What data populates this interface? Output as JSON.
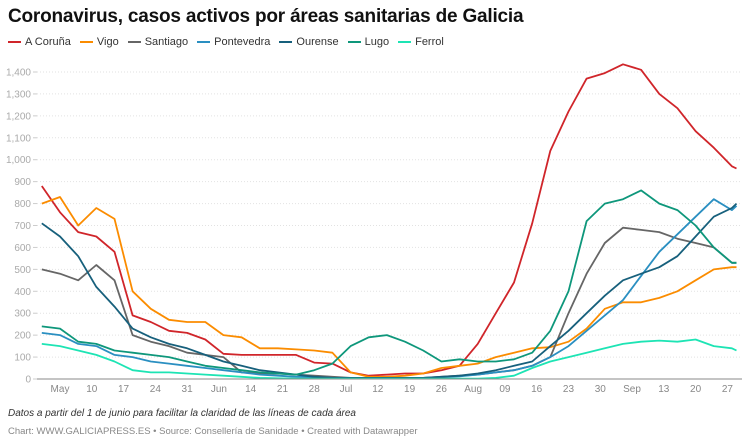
{
  "title": "Coronavirus, casos activos por áreas sanitarias de Galicia",
  "note": "Datos a partir del 1 de junio para facilitar la claridad de las líneas de cada área",
  "credits": "Chart: WWW.GALICIAPRESS.ES • Source: Consellería de Sanidade • Created with Datawrapper",
  "chart_data": {
    "type": "line",
    "title": "Coronavirus, casos activos por áreas sanitarias de Galicia",
    "xlabel": "",
    "ylabel": "",
    "ylim": [
      0,
      1400
    ],
    "grid": true,
    "legend": "top-left",
    "y_ticks": [
      0,
      100,
      200,
      300,
      400,
      500,
      600,
      700,
      800,
      900,
      1000,
      1100,
      1200,
      1300,
      1400
    ],
    "y_tick_labels": [
      "0",
      "100",
      "200",
      "300",
      "400",
      "500",
      "600",
      "700",
      "800",
      "900",
      "1,000",
      "1,100",
      "1,200",
      "1,300",
      "1,400"
    ],
    "x_ticks": [
      "2020-05-03",
      "2020-05-10",
      "2020-05-17",
      "2020-05-24",
      "2020-05-31",
      "2020-06-07",
      "2020-06-14",
      "2020-06-21",
      "2020-06-28",
      "2020-07-05",
      "2020-07-12",
      "2020-07-19",
      "2020-07-26",
      "2020-08-02",
      "2020-08-09",
      "2020-08-16",
      "2020-08-23",
      "2020-08-30",
      "2020-09-06",
      "2020-09-13",
      "2020-09-20",
      "2020-09-27"
    ],
    "x_tick_labels": [
      "May",
      "10",
      "17",
      "24",
      "31",
      "Jun",
      "14",
      "21",
      "28",
      "Jul",
      "12",
      "19",
      "26",
      "Aug",
      "09",
      "16",
      "23",
      "30",
      "Sep",
      "13",
      "20",
      "27"
    ],
    "x": [
      "2020-04-29",
      "2020-05-03",
      "2020-05-07",
      "2020-05-11",
      "2020-05-15",
      "2020-05-19",
      "2020-05-23",
      "2020-05-27",
      "2020-05-31",
      "2020-06-04",
      "2020-06-08",
      "2020-06-12",
      "2020-06-16",
      "2020-06-20",
      "2020-06-24",
      "2020-06-28",
      "2020-07-02",
      "2020-07-06",
      "2020-07-10",
      "2020-07-14",
      "2020-07-18",
      "2020-07-22",
      "2020-07-26",
      "2020-07-30",
      "2020-08-03",
      "2020-08-07",
      "2020-08-11",
      "2020-08-15",
      "2020-08-19",
      "2020-08-23",
      "2020-08-27",
      "2020-08-31",
      "2020-09-04",
      "2020-09-08",
      "2020-09-12",
      "2020-09-16",
      "2020-09-20",
      "2020-09-24",
      "2020-09-28",
      "2020-09-29"
    ],
    "series": [
      {
        "name": "A Coruña",
        "color": "#d0252a",
        "values": [
          880,
          760,
          670,
          650,
          580,
          290,
          260,
          220,
          210,
          180,
          115,
          110,
          110,
          110,
          110,
          75,
          70,
          30,
          15,
          20,
          25,
          25,
          40,
          60,
          160,
          300,
          440,
          710,
          1040,
          1220,
          1370,
          1395,
          1435,
          1410,
          1300,
          1235,
          1130,
          1055,
          970,
          960
        ]
      },
      {
        "name": "Vigo",
        "color": "#fb8c00",
        "values": [
          800,
          830,
          700,
          780,
          730,
          400,
          320,
          270,
          260,
          260,
          200,
          190,
          140,
          140,
          135,
          130,
          120,
          30,
          10,
          10,
          15,
          25,
          50,
          60,
          70,
          100,
          120,
          140,
          145,
          170,
          230,
          320,
          350,
          350,
          370,
          400,
          450,
          500,
          510,
          510
        ]
      },
      {
        "name": "Santiago",
        "color": "#666666",
        "values": [
          500,
          480,
          450,
          520,
          450,
          200,
          170,
          150,
          120,
          110,
          100,
          30,
          25,
          25,
          20,
          15,
          10,
          5,
          5,
          5,
          5,
          5,
          10,
          15,
          20,
          30,
          40,
          60,
          100,
          300,
          480,
          620,
          690,
          680,
          670,
          640,
          620,
          600,
          530,
          530
        ]
      },
      {
        "name": "Pontevedra",
        "color": "#2a8fc1",
        "values": [
          210,
          200,
          160,
          150,
          110,
          100,
          80,
          70,
          60,
          50,
          40,
          30,
          20,
          15,
          10,
          8,
          5,
          5,
          5,
          5,
          5,
          5,
          8,
          12,
          20,
          30,
          40,
          60,
          100,
          150,
          220,
          290,
          360,
          470,
          580,
          660,
          740,
          820,
          770,
          790
        ]
      },
      {
        "name": "Ourense",
        "color": "#17607c",
        "values": [
          710,
          650,
          560,
          420,
          330,
          230,
          190,
          160,
          140,
          110,
          80,
          60,
          40,
          30,
          20,
          10,
          5,
          5,
          5,
          5,
          5,
          5,
          10,
          15,
          25,
          40,
          60,
          80,
          150,
          220,
          300,
          380,
          450,
          480,
          510,
          560,
          650,
          740,
          780,
          800
        ]
      },
      {
        "name": "Lugo",
        "color": "#0e977b",
        "values": [
          240,
          230,
          170,
          160,
          130,
          120,
          110,
          100,
          80,
          60,
          50,
          40,
          30,
          25,
          20,
          40,
          70,
          150,
          190,
          200,
          170,
          130,
          80,
          90,
          80,
          80,
          90,
          120,
          220,
          400,
          720,
          800,
          820,
          860,
          800,
          770,
          700,
          600,
          530,
          530
        ]
      },
      {
        "name": "Ferrol",
        "color": "#1de4b4",
        "values": [
          160,
          150,
          130,
          110,
          80,
          40,
          30,
          30,
          25,
          20,
          15,
          10,
          5,
          3,
          2,
          2,
          2,
          2,
          2,
          2,
          2,
          2,
          2,
          2,
          2,
          5,
          15,
          50,
          80,
          100,
          120,
          140,
          160,
          170,
          175,
          170,
          180,
          150,
          140,
          130
        ]
      }
    ]
  }
}
